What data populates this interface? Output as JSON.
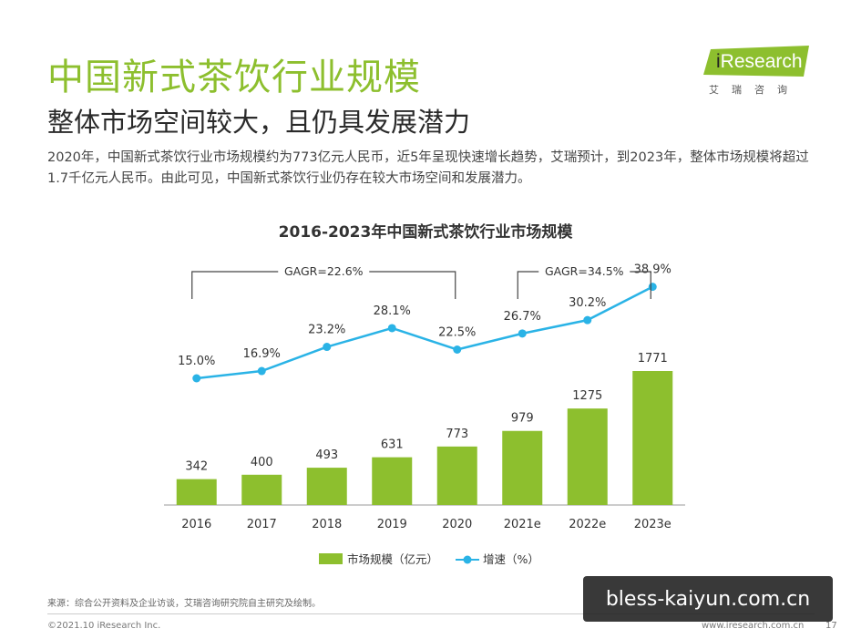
{
  "header": {
    "title": "中国新式茶饮行业规模",
    "subtitle": "整体市场空间较大，且仍具发展潜力",
    "description": "2020年，中国新式茶饮行业市场规模约为773亿元人民币，近5年呈现快速增长趋势，艾瑞预计，到2023年，整体市场规模将超过1.7千亿元人民币。由此可见，中国新式茶饮行业仍存在较大市场空间和发展潜力。"
  },
  "logo": {
    "brand_i": "i",
    "brand_rest": "Research",
    "sub": "艾瑞咨询",
    "accent": "#8dbf2e"
  },
  "chart_data": {
    "type": "bar",
    "title": "2016-2023年中国新式茶饮行业市场规模",
    "categories": [
      "2016",
      "2017",
      "2018",
      "2019",
      "2020",
      "2021e",
      "2022e",
      "2023e"
    ],
    "series": [
      {
        "name": "市场规模（亿元）",
        "type": "bar",
        "color": "#8dbf2e",
        "values": [
          342,
          400,
          493,
          631,
          773,
          979,
          1275,
          1771
        ]
      },
      {
        "name": "增速（%）",
        "type": "line",
        "color": "#2ab3e6",
        "values": [
          15.0,
          16.9,
          23.2,
          28.1,
          22.5,
          26.7,
          30.2,
          38.9
        ],
        "labels": [
          "15.0%",
          "16.9%",
          "23.2%",
          "28.1%",
          "22.5%",
          "26.7%",
          "30.2%",
          "38.9%"
        ]
      }
    ],
    "annotations": [
      {
        "text": "GAGR=22.6%",
        "from": "2016",
        "to": "2020"
      },
      {
        "text": "GAGR=34.5%",
        "from": "2021e",
        "to": "2023e"
      }
    ],
    "legend": "bottom-center",
    "grid": false
  },
  "footer": {
    "source": "来源：综合公开资料及企业访谈，艾瑞咨询研究院自主研究及绘制。",
    "copyright": "©2021.10 iResearch Inc.",
    "website": "www.iresearch.com.cn",
    "page": "17"
  },
  "watermark": "bless-kaiyun.com.cn"
}
